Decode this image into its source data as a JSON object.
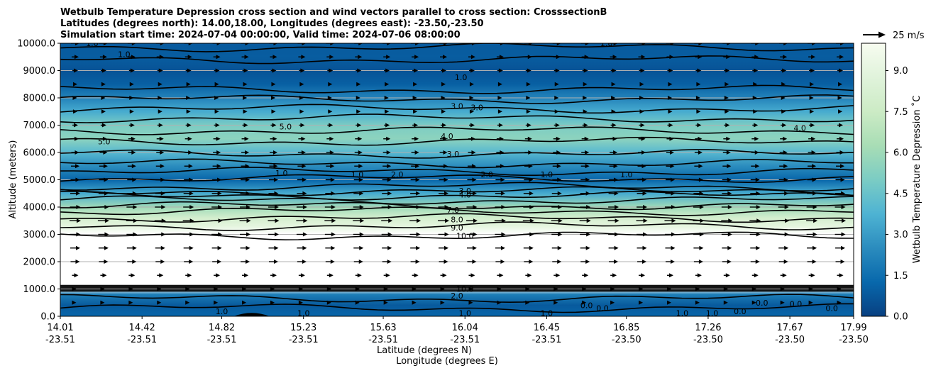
{
  "chart_data": {
    "type": "contourf",
    "title_lines": [
      "Wetbulb Temperature Depression cross section and wind vectors parallel to cross section: CrosssectionB",
      "Latitudes (degrees north): 14.00,18.00, Longitudes (degrees east): -23.50,-23.50",
      "Simulation start time: 2024-07-04 00:00:00, Valid time: 2024-07-06 08:00:00"
    ],
    "ylabel": "Altitude (meters)",
    "xlabel_lat": "Latitude (degrees N)",
    "xlabel_lon": "Longitude (degrees E)",
    "ylim": [
      0,
      10000
    ],
    "yticks": [
      "0.0",
      "1000.0",
      "2000.0",
      "3000.0",
      "4000.0",
      "5000.0",
      "6000.0",
      "7000.0",
      "8000.0",
      "9000.0",
      "10000.0"
    ],
    "ytick_values": [
      0,
      1000,
      2000,
      3000,
      4000,
      5000,
      6000,
      7000,
      8000,
      9000,
      10000
    ],
    "xlim": [
      14.01,
      17.99
    ],
    "xticks_lat": [
      "14.01",
      "14.42",
      "14.82",
      "15.23",
      "15.63",
      "16.04",
      "16.45",
      "16.85",
      "17.26",
      "17.67",
      "17.99"
    ],
    "xticks_lon": [
      "-23.51",
      "-23.51",
      "-23.51",
      "-23.51",
      "-23.51",
      "-23.51",
      "-23.51",
      "-23.50",
      "-23.50",
      "-23.50",
      "-23.50"
    ],
    "xtick_values": [
      14.01,
      14.42,
      14.82,
      15.23,
      15.63,
      16.04,
      16.45,
      16.85,
      17.26,
      17.67,
      17.99
    ],
    "grid": "horizontal",
    "colorbar": {
      "label": "Wetbulb Temperature Depression ˚C",
      "range": [
        0,
        10
      ],
      "ticks": [
        "0.0",
        "1.5",
        "3.0",
        "4.5",
        "6.0",
        "7.5",
        "9.0"
      ],
      "tick_values": [
        0,
        1.5,
        3.0,
        4.5,
        6.0,
        7.5,
        9.0
      ],
      "colormap": "GnBu_r",
      "colors": [
        "#084081",
        "#0868ac",
        "#2b8cbe",
        "#4eb3d3",
        "#7bccc4",
        "#a8ddb5",
        "#ccebc5",
        "#e0f3db",
        "#f7fcf0"
      ]
    },
    "quiver_key": {
      "label": "25 m/s",
      "speed": 25
    },
    "depression_profile": [
      {
        "z": 0,
        "v": 1.2
      },
      {
        "z": 400,
        "v": 0.8
      },
      {
        "z": 800,
        "v": 2.0
      },
      {
        "z": 1000,
        "v": 10
      },
      {
        "z": 2800,
        "v": 10
      },
      {
        "z": 3000,
        "v": 10
      },
      {
        "z": 3300,
        "v": 9.0
      },
      {
        "z": 3600,
        "v": 8.0
      },
      {
        "z": 4000,
        "v": 6.0
      },
      {
        "z": 4500,
        "v": 3.5
      },
      {
        "z": 5000,
        "v": 1.2
      },
      {
        "z": 5500,
        "v": 2.5
      },
      {
        "z": 6000,
        "v": 4.0
      },
      {
        "z": 6500,
        "v": 5.5
      },
      {
        "z": 7000,
        "v": 5.0
      },
      {
        "z": 7500,
        "v": 3.5
      },
      {
        "z": 8000,
        "v": 2.2
      },
      {
        "z": 8500,
        "v": 1.0
      },
      {
        "z": 9000,
        "v": 0.6
      },
      {
        "z": 9500,
        "v": 0.9
      },
      {
        "z": 10000,
        "v": 0.8
      }
    ],
    "contour_lines": [
      {
        "z": 300,
        "label": "1.0"
      },
      {
        "z": 650,
        "label": "2.0"
      },
      {
        "z": 2950,
        "label": "10.0"
      },
      {
        "z": 3300,
        "label": "9.0"
      },
      {
        "z": 3600,
        "label": "8.0"
      },
      {
        "z": 3850,
        "label": "7.0"
      },
      {
        "z": 4050,
        "label": "6.0"
      },
      {
        "z": 4250,
        "label": "5.0"
      },
      {
        "z": 4420,
        "label": "4.0"
      },
      {
        "z": 4580,
        "label": "3.0"
      },
      {
        "z": 4750,
        "label": "2.0"
      },
      {
        "z": 5050,
        "label": "1.0"
      },
      {
        "z": 5300,
        "label": "2.0"
      },
      {
        "z": 5600,
        "label": "3.0"
      },
      {
        "z": 5950,
        "label": "3.0"
      },
      {
        "z": 6400,
        "label": "4.0"
      },
      {
        "z": 6800,
        "label": "5.0"
      },
      {
        "z": 7250,
        "label": "4.0"
      },
      {
        "z": 7600,
        "label": "3.0"
      },
      {
        "z": 7950,
        "label": "2.0"
      },
      {
        "z": 8300,
        "label": "1.0"
      },
      {
        "z": 9400,
        "label": "1.0"
      },
      {
        "z": 9850,
        "label": "1.0"
      }
    ],
    "inline_labels": [
      {
        "text": "1.0",
        "x": 16.02,
        "z": 8750
      },
      {
        "text": "3.0",
        "x": 16.0,
        "z": 7700
      },
      {
        "text": "3.0",
        "x": 16.1,
        "z": 7650
      },
      {
        "text": "4.0",
        "x": 15.95,
        "z": 6600
      },
      {
        "text": "3.0",
        "x": 15.98,
        "z": 5950
      },
      {
        "text": "5.0",
        "x": 14.23,
        "z": 6400
      },
      {
        "text": "5.0",
        "x": 15.14,
        "z": 6950
      },
      {
        "text": "4.0",
        "x": 17.72,
        "z": 6900
      },
      {
        "text": "1.0",
        "x": 15.12,
        "z": 5250
      },
      {
        "text": "1.0",
        "x": 15.5,
        "z": 5200
      },
      {
        "text": "2.0",
        "x": 15.7,
        "z": 5200
      },
      {
        "text": "2.0",
        "x": 16.15,
        "z": 5200
      },
      {
        "text": "1.0",
        "x": 16.45,
        "z": 5200
      },
      {
        "text": "1.0",
        "x": 16.85,
        "z": 5200
      },
      {
        "text": "1.0",
        "x": 14.33,
        "z": 9600
      },
      {
        "text": "1.0",
        "x": 14.17,
        "z": 10000
      },
      {
        "text": "1.0",
        "x": 16.75,
        "z": 10000
      },
      {
        "text": "4.0",
        "x": 16.04,
        "z": 4450
      },
      {
        "text": "3.0",
        "x": 16.04,
        "z": 4600
      },
      {
        "text": "7.0",
        "x": 15.98,
        "z": 3900
      },
      {
        "text": "8.0",
        "x": 16.0,
        "z": 3550
      },
      {
        "text": "9.0",
        "x": 16.0,
        "z": 3250
      },
      {
        "text": "10.0",
        "x": 16.04,
        "z": 2950
      },
      {
        "text": "10.0",
        "x": 16.04,
        "z": 1000
      },
      {
        "text": "2.0",
        "x": 16.0,
        "z": 750
      },
      {
        "text": "1.0",
        "x": 16.04,
        "z": 120
      },
      {
        "text": "1.0",
        "x": 14.82,
        "z": 180
      },
      {
        "text": "1.0",
        "x": 15.23,
        "z": 120
      },
      {
        "text": "1.0",
        "x": 16.45,
        "z": 120
      },
      {
        "text": "0.0",
        "x": 16.65,
        "z": 400
      },
      {
        "text": "0.0",
        "x": 16.73,
        "z": 300
      },
      {
        "text": "1.0",
        "x": 17.13,
        "z": 120
      },
      {
        "text": "1.0",
        "x": 17.28,
        "z": 120
      },
      {
        "text": "0.0",
        "x": 17.42,
        "z": 180
      },
      {
        "text": "0.0",
        "x": 17.53,
        "z": 500
      },
      {
        "text": "0.0",
        "x": 17.7,
        "z": 450
      },
      {
        "text": "0.0",
        "x": 17.88,
        "z": 300
      }
    ],
    "wind_rows": [
      {
        "z": 10000,
        "speed": 10
      },
      {
        "z": 9500,
        "speed": 8
      },
      {
        "z": 9000,
        "speed": 6
      },
      {
        "z": 8500,
        "speed": 4
      },
      {
        "z": 8000,
        "speed": 3
      },
      {
        "z": 7500,
        "speed": 4
      },
      {
        "z": 7000,
        "speed": 6
      },
      {
        "z": 6500,
        "speed": 8
      },
      {
        "z": 6000,
        "speed": 9
      },
      {
        "z": 5500,
        "speed": 10
      },
      {
        "z": 5000,
        "speed": 11
      },
      {
        "z": 4500,
        "speed": 12
      },
      {
        "z": 4000,
        "speed": 13
      },
      {
        "z": 3500,
        "speed": 14
      },
      {
        "z": 3000,
        "speed": 13
      },
      {
        "z": 2500,
        "speed": 12
      },
      {
        "z": 2000,
        "speed": 11
      },
      {
        "z": 1500,
        "speed": 7
      },
      {
        "z": 1000,
        "speed": 1
      },
      {
        "z": 500,
        "speed": 1
      }
    ]
  }
}
